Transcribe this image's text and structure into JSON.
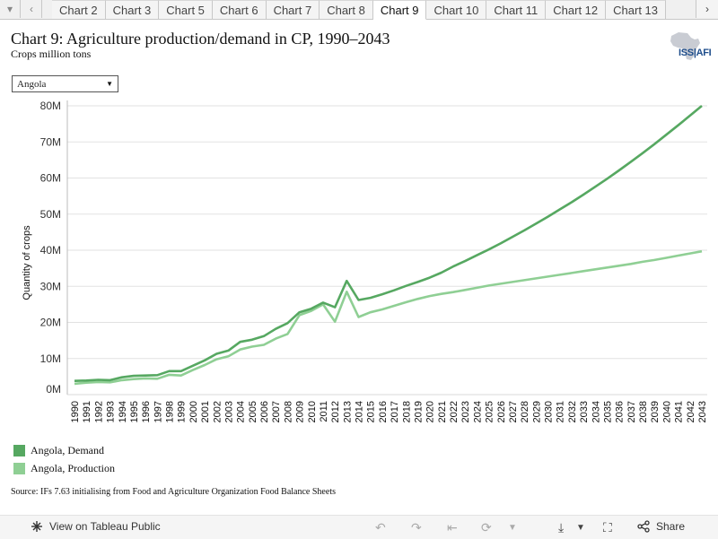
{
  "tabs": {
    "items": [
      "Chart 2",
      "Chart 3",
      "Chart 5",
      "Chart 6",
      "Chart 7",
      "Chart 8",
      "Chart 9",
      "Chart 10",
      "Chart 11",
      "Chart 12",
      "Chart 13"
    ],
    "active_index": 6
  },
  "header": {
    "title": "Chart 9: Agriculture production/demand in CP, 1990–2043",
    "subtitle": "Crops million tons",
    "logo_text": "ISS|AFI"
  },
  "filter": {
    "selected": "Angola"
  },
  "legend": {
    "items": [
      {
        "label": "Angola, Demand",
        "color": "#56a861"
      },
      {
        "label": "Angola, Production",
        "color": "#8fcf94"
      }
    ]
  },
  "source": "Source: IFs 7.63 initialising from Food and Agriculture Organization Food Balance Sheets",
  "footer": {
    "view_label": "View on Tableau Public",
    "share_label": "Share"
  },
  "chart_data": {
    "type": "line",
    "ylabel": "Quantity of crops",
    "xlabel": "",
    "ylim": [
      0,
      80
    ],
    "y_ticks": [
      0,
      10,
      20,
      30,
      40,
      50,
      60,
      70,
      80
    ],
    "y_tick_labels": [
      "0M",
      "10M",
      "20M",
      "30M",
      "40M",
      "50M",
      "60M",
      "70M",
      "80M"
    ],
    "grid": true,
    "x": [
      1990,
      1991,
      1992,
      1993,
      1994,
      1995,
      1996,
      1997,
      1998,
      1999,
      2000,
      2001,
      2002,
      2003,
      2004,
      2005,
      2006,
      2007,
      2008,
      2009,
      2010,
      2011,
      2012,
      2013,
      2014,
      2015,
      2016,
      2017,
      2018,
      2019,
      2020,
      2021,
      2022,
      2023,
      2024,
      2025,
      2026,
      2027,
      2028,
      2029,
      2030,
      2031,
      2032,
      2033,
      2034,
      2035,
      2036,
      2037,
      2038,
      2039,
      2040,
      2041,
      2042,
      2043
    ],
    "series": [
      {
        "name": "Angola, Demand",
        "color": "#56a861",
        "values": [
          3.8,
          3.9,
          4.1,
          4.0,
          4.8,
          5.2,
          5.3,
          5.4,
          6.5,
          6.5,
          8.0,
          9.5,
          11.3,
          12.2,
          14.6,
          15.2,
          16.2,
          18.2,
          19.8,
          22.8,
          23.8,
          25.5,
          24.2,
          31.5,
          26.2,
          26.8,
          27.8,
          28.9,
          30.1,
          31.2,
          32.4,
          33.8,
          35.5,
          37.0,
          38.6,
          40.2,
          41.9,
          43.7,
          45.5,
          47.4,
          49.3,
          51.3,
          53.3,
          55.4,
          57.6,
          59.8,
          62.1,
          64.5,
          66.9,
          69.4,
          72.0,
          74.6,
          77.3,
          80.0
        ]
      },
      {
        "name": "Angola, Production",
        "color": "#8fcf94",
        "values": [
          3.0,
          3.3,
          3.5,
          3.4,
          4.0,
          4.3,
          4.5,
          4.4,
          5.5,
          5.3,
          6.8,
          8.2,
          9.8,
          10.6,
          12.5,
          13.3,
          13.8,
          15.5,
          16.8,
          22.0,
          23.2,
          25.0,
          20.2,
          28.5,
          21.5,
          22.8,
          23.6,
          24.6,
          25.6,
          26.5,
          27.3,
          27.9,
          28.4,
          29.0,
          29.6,
          30.2,
          30.7,
          31.2,
          31.7,
          32.2,
          32.7,
          33.2,
          33.7,
          34.2,
          34.7,
          35.2,
          35.7,
          36.2,
          36.8,
          37.3,
          37.9,
          38.5,
          39.1,
          39.7
        ]
      }
    ]
  }
}
